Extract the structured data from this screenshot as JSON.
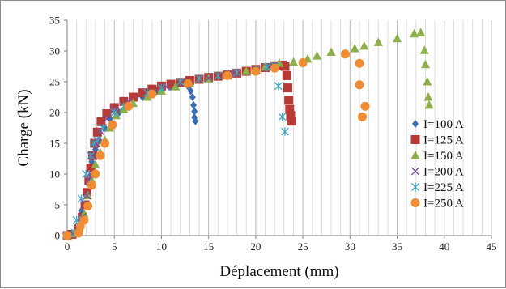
{
  "chart_data": {
    "type": "scatter",
    "title": "",
    "xlabel": "Déplacement (mm)",
    "ylabel": "Charge (kN)",
    "xlim": [
      0,
      45
    ],
    "ylim": [
      0,
      35
    ],
    "xticks": [
      0,
      5,
      10,
      15,
      20,
      25,
      30,
      35,
      40,
      45
    ],
    "yticks": [
      0,
      5,
      10,
      15,
      20,
      25,
      30,
      35
    ],
    "grid": "vertical",
    "legend_position": "right",
    "series": [
      {
        "name": "I=100 A",
        "marker": "diamond",
        "color": "#3a6cb4",
        "points": [
          [
            0,
            0
          ],
          [
            0.5,
            0.4
          ],
          [
            1,
            1.5
          ],
          [
            1.5,
            4
          ],
          [
            2,
            7
          ],
          [
            2.3,
            9.5
          ],
          [
            2.6,
            12
          ],
          [
            3,
            14
          ],
          [
            3.4,
            15.5
          ],
          [
            4,
            17.5
          ],
          [
            4.6,
            19
          ],
          [
            5.5,
            20
          ],
          [
            6.5,
            21
          ],
          [
            8,
            22.5
          ],
          [
            9.5,
            23.5
          ],
          [
            11,
            24.2
          ],
          [
            12.3,
            24.8
          ],
          [
            12.8,
            24.3
          ],
          [
            13.1,
            23.5
          ],
          [
            13.3,
            22.5
          ],
          [
            13.4,
            21.2
          ],
          [
            13.5,
            20.2
          ],
          [
            13.5,
            19.2
          ],
          [
            13.6,
            18.6
          ]
        ]
      },
      {
        "name": "I=125 A",
        "marker": "square",
        "color": "#b83a36",
        "points": [
          [
            0,
            0
          ],
          [
            0.5,
            0.2
          ],
          [
            1.2,
            1
          ],
          [
            1.6,
            3
          ],
          [
            1.9,
            5
          ],
          [
            2.1,
            7
          ],
          [
            2.3,
            9
          ],
          [
            2.5,
            11
          ],
          [
            2.7,
            13
          ],
          [
            2.9,
            15
          ],
          [
            3.2,
            16.8
          ],
          [
            3.6,
            18.5
          ],
          [
            4.2,
            19.8
          ],
          [
            5,
            20.8
          ],
          [
            6,
            21.8
          ],
          [
            7,
            22.5
          ],
          [
            8,
            23.2
          ],
          [
            9,
            23.8
          ],
          [
            10,
            24.3
          ],
          [
            11,
            24.6
          ],
          [
            12,
            24.9
          ],
          [
            13,
            25.2
          ],
          [
            14,
            25.4
          ],
          [
            15,
            25.7
          ],
          [
            16,
            25.9
          ],
          [
            17,
            26.1
          ],
          [
            18,
            26.4
          ],
          [
            19,
            26.7
          ],
          [
            20,
            27
          ],
          [
            21,
            27.3
          ],
          [
            22,
            27.6
          ],
          [
            22.8,
            27.7
          ],
          [
            23.1,
            27.5
          ],
          [
            23.3,
            26
          ],
          [
            23.4,
            24
          ],
          [
            23.5,
            22
          ],
          [
            23.6,
            20.5
          ],
          [
            23.7,
            19.5
          ],
          [
            23.8,
            18.6
          ]
        ]
      },
      {
        "name": "I=150 A",
        "marker": "triangle",
        "color": "#8db04a",
        "points": [
          [
            0,
            0
          ],
          [
            0.6,
            0.3
          ],
          [
            1.3,
            1.3
          ],
          [
            1.8,
            3.5
          ],
          [
            2.2,
            6.5
          ],
          [
            2.6,
            9
          ],
          [
            3,
            11.5
          ],
          [
            3.5,
            13.5
          ],
          [
            4,
            15.5
          ],
          [
            4.5,
            17.5
          ],
          [
            5.2,
            19.5
          ],
          [
            6,
            20.5
          ],
          [
            7,
            21.5
          ],
          [
            8.5,
            22.5
          ],
          [
            10,
            23.5
          ],
          [
            11.5,
            24.2
          ],
          [
            13,
            24.8
          ],
          [
            15,
            25.5
          ],
          [
            17,
            26.1
          ],
          [
            19,
            26.7
          ],
          [
            21,
            27.4
          ],
          [
            22.5,
            28
          ],
          [
            24,
            28.2
          ],
          [
            25.5,
            28.7
          ],
          [
            26.5,
            29.2
          ],
          [
            28,
            29.8
          ],
          [
            29.5,
            29.6
          ],
          [
            30.5,
            30.4
          ],
          [
            31.5,
            30.8
          ],
          [
            33,
            31.4
          ],
          [
            35,
            32
          ],
          [
            36.8,
            32.8
          ],
          [
            37.5,
            33
          ],
          [
            37.9,
            30.1
          ],
          [
            38,
            27.8
          ],
          [
            38.2,
            25
          ],
          [
            38.3,
            22.5
          ],
          [
            38.4,
            21.2
          ]
        ]
      },
      {
        "name": "I=200 A",
        "marker": "x",
        "color": "#7a4fa0",
        "points": [
          [
            0,
            0
          ],
          [
            0.6,
            0.3
          ],
          [
            1.2,
            1
          ],
          [
            1.6,
            3
          ],
          [
            1.9,
            5
          ],
          [
            2.1,
            6.5
          ],
          [
            2.3,
            9
          ],
          [
            2.5,
            10
          ],
          [
            2.8,
            13
          ],
          [
            3.1,
            15
          ],
          [
            3.5,
            17
          ],
          [
            4.2,
            19
          ],
          [
            5,
            20.5
          ],
          [
            6.5,
            21.8
          ],
          [
            8.5,
            23.2
          ],
          [
            10.5,
            24.2
          ],
          [
            12.5,
            24.9
          ],
          [
            15,
            25.6
          ],
          [
            17.5,
            26.3
          ],
          [
            20,
            27
          ],
          [
            21.5,
            27.4
          ],
          [
            22,
            27.6
          ]
        ]
      },
      {
        "name": "I=225 A",
        "marker": "asterisk",
        "color": "#3fa3c4",
        "points": [
          [
            0,
            0
          ],
          [
            0.8,
            0.4
          ],
          [
            1,
            2.5
          ],
          [
            1.5,
            6
          ],
          [
            2,
            10
          ],
          [
            2.5,
            13
          ],
          [
            2.8,
            15
          ],
          [
            3.2,
            15.5
          ],
          [
            3.8,
            17.5
          ],
          [
            5,
            20
          ],
          [
            6,
            21
          ],
          [
            8.5,
            23.2
          ],
          [
            10,
            24
          ],
          [
            12,
            25
          ],
          [
            14,
            25.5
          ],
          [
            16,
            26
          ],
          [
            18,
            26.5
          ],
          [
            20,
            27
          ],
          [
            21.2,
            27.4
          ],
          [
            22,
            27.6
          ],
          [
            22.4,
            24.3
          ],
          [
            22.8,
            19.3
          ],
          [
            23.1,
            16.9
          ]
        ]
      },
      {
        "name": "I=250 A",
        "marker": "circle",
        "color": "#f08c34",
        "points": [
          [
            0,
            0
          ],
          [
            1.2,
            0.4
          ],
          [
            1.4,
            1.5
          ],
          [
            1.8,
            2.5
          ],
          [
            2.2,
            4.8
          ],
          [
            2.6,
            8.2
          ],
          [
            3,
            10
          ],
          [
            3.5,
            13
          ],
          [
            4,
            15
          ],
          [
            4.8,
            18
          ],
          [
            6.5,
            21
          ],
          [
            9,
            23
          ],
          [
            12.8,
            24.7
          ],
          [
            17,
            26
          ],
          [
            20,
            26.7
          ],
          [
            22,
            27.2
          ],
          [
            25,
            28.1
          ],
          [
            29.5,
            29.5
          ],
          [
            31,
            28
          ],
          [
            31,
            24.5
          ],
          [
            31.3,
            19.3
          ],
          [
            31.6,
            21
          ]
        ]
      }
    ]
  }
}
